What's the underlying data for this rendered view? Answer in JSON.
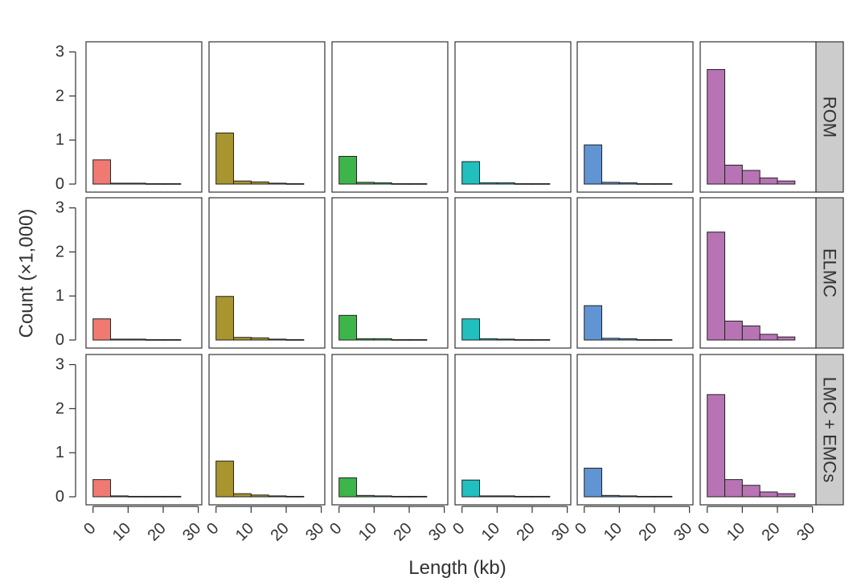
{
  "chart_data": {
    "type": "bar",
    "layout": "faceted histogram grid, 3 rows x 6 columns",
    "xlabel": "Length (kb)",
    "ylabel": "Count (×1,000)",
    "x_ticks": [
      0,
      10,
      20,
      30
    ],
    "y_ticks": [
      0,
      1,
      2,
      3
    ],
    "xlim": [
      -2,
      31
    ],
    "ylim": [
      -0.1,
      3.2
    ],
    "bins": [
      [
        0,
        5
      ],
      [
        5,
        10
      ],
      [
        10,
        15
      ],
      [
        15,
        20
      ],
      [
        20,
        25
      ],
      [
        25,
        27
      ]
    ],
    "row_labels": [
      "ROM",
      "ELMC",
      "LMC + EMCs"
    ],
    "column_colors": [
      "#f07a72",
      "#a8952f",
      "#3db54a",
      "#22bfbf",
      "#6194d3",
      "#b873b5"
    ],
    "strip_color": "#cccccc",
    "grid": false,
    "panels": [
      [
        [
          0.55,
          0.02,
          0.02,
          0.01,
          0.01,
          0.0
        ],
        [
          1.16,
          0.07,
          0.05,
          0.02,
          0.01,
          0.0
        ],
        [
          0.63,
          0.04,
          0.03,
          0.01,
          0.01,
          0.0
        ],
        [
          0.51,
          0.03,
          0.03,
          0.01,
          0.01,
          0.0
        ],
        [
          0.89,
          0.04,
          0.03,
          0.01,
          0.01,
          0.0
        ],
        [
          2.6,
          0.43,
          0.31,
          0.14,
          0.07,
          0.0
        ]
      ],
      [
        [
          0.48,
          0.02,
          0.02,
          0.01,
          0.01,
          0.0
        ],
        [
          0.99,
          0.06,
          0.05,
          0.02,
          0.01,
          0.0
        ],
        [
          0.56,
          0.03,
          0.03,
          0.01,
          0.01,
          0.0
        ],
        [
          0.48,
          0.03,
          0.02,
          0.01,
          0.01,
          0.0
        ],
        [
          0.78,
          0.04,
          0.03,
          0.01,
          0.01,
          0.0
        ],
        [
          2.45,
          0.43,
          0.32,
          0.13,
          0.07,
          0.0
        ]
      ],
      [
        [
          0.39,
          0.02,
          0.01,
          0.01,
          0.01,
          0.0
        ],
        [
          0.81,
          0.07,
          0.04,
          0.02,
          0.01,
          0.0
        ],
        [
          0.43,
          0.03,
          0.02,
          0.01,
          0.01,
          0.0
        ],
        [
          0.38,
          0.02,
          0.02,
          0.01,
          0.01,
          0.0
        ],
        [
          0.65,
          0.03,
          0.02,
          0.01,
          0.01,
          0.0
        ],
        [
          2.32,
          0.39,
          0.26,
          0.11,
          0.07,
          0.0
        ]
      ]
    ]
  }
}
